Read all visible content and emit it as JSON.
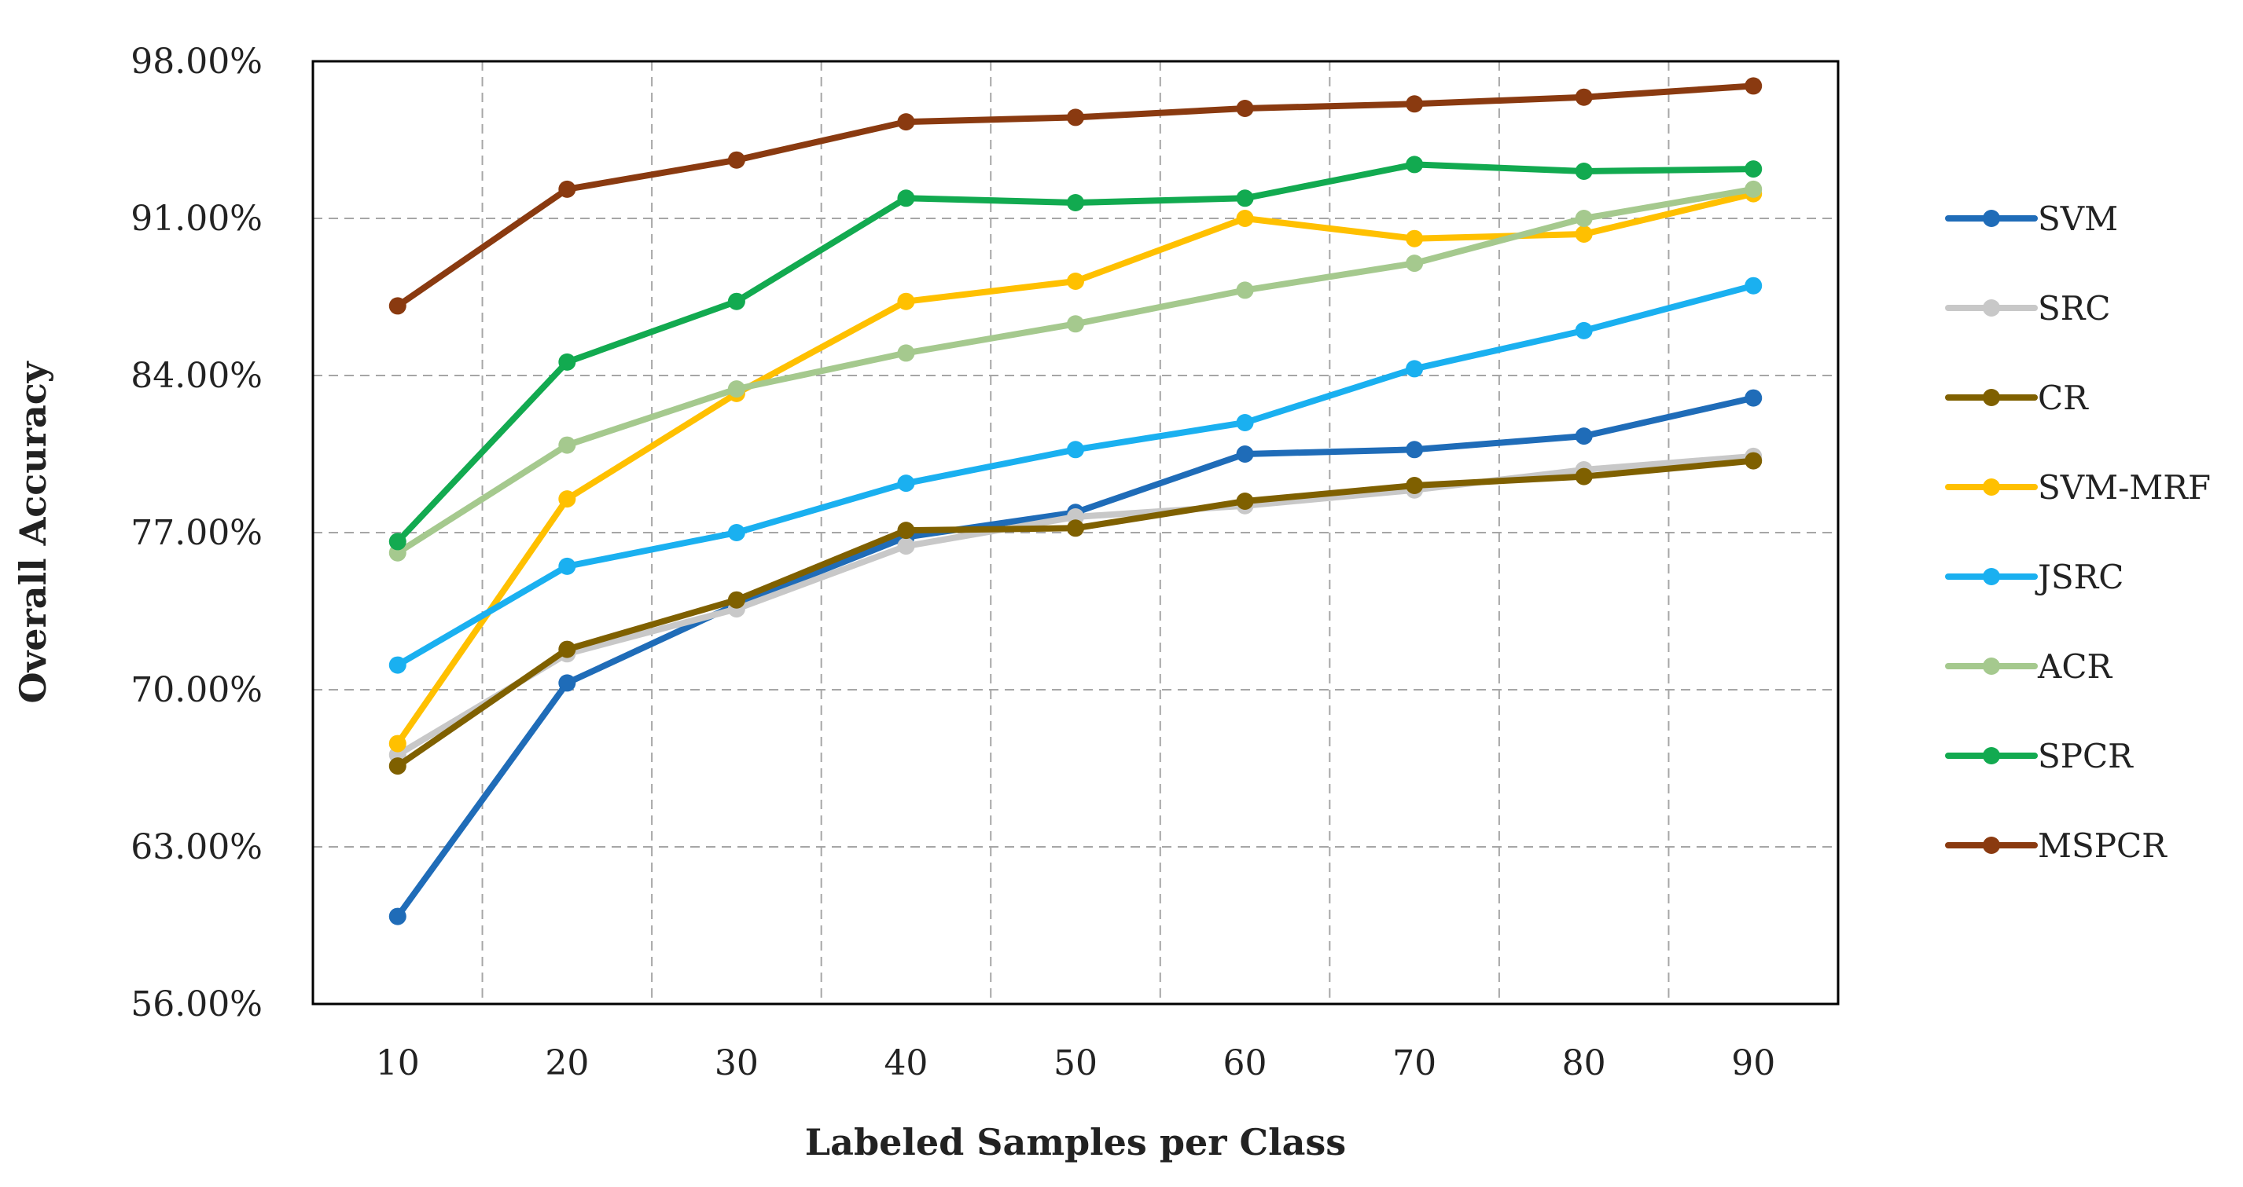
{
  "chart_data": {
    "type": "line",
    "title": "",
    "xlabel": "Labeled Samples per Class",
    "ylabel": "Overall Accuracy",
    "x": [
      10,
      20,
      30,
      40,
      50,
      60,
      70,
      80,
      90
    ],
    "x_tick_labels": [
      "10",
      "20",
      "30",
      "40",
      "50",
      "60",
      "70",
      "80",
      "90"
    ],
    "xlim": [
      5,
      95
    ],
    "ylim": [
      56,
      98
    ],
    "y_ticks": [
      56,
      63,
      70,
      77,
      84,
      91,
      98
    ],
    "y_tick_labels": [
      "56.00%",
      "63.00%",
      "70.00%",
      "77.00%",
      "84.00%",
      "91.00%",
      "98.00%"
    ],
    "grid": true,
    "legend_position": "right",
    "series": [
      {
        "name": "SVM",
        "color": "#1f6cb8",
        "values": [
          59.9,
          70.3,
          73.8,
          76.8,
          77.9,
          80.5,
          80.7,
          81.3,
          83.0
        ]
      },
      {
        "name": "SRC",
        "color": "#c8c8c8",
        "values": [
          67.1,
          71.6,
          73.6,
          76.4,
          77.7,
          78.2,
          78.9,
          79.8,
          80.4
        ]
      },
      {
        "name": "CR",
        "color": "#7f6000",
        "values": [
          66.6,
          71.8,
          74.0,
          77.1,
          77.2,
          78.4,
          79.1,
          79.5,
          80.2
        ]
      },
      {
        "name": "SVM-MRF",
        "color": "#ffc000",
        "values": [
          67.6,
          78.5,
          83.2,
          87.3,
          88.2,
          91.0,
          90.1,
          90.3,
          92.1
        ]
      },
      {
        "name": "JSRC",
        "color": "#1ab0f0",
        "values": [
          71.1,
          75.5,
          77.0,
          79.2,
          80.7,
          81.9,
          84.3,
          86.0,
          88.0
        ]
      },
      {
        "name": "ACR",
        "color": "#a5c98e",
        "values": [
          76.1,
          80.9,
          83.4,
          85.0,
          86.3,
          87.8,
          89.0,
          91.0,
          92.3
        ]
      },
      {
        "name": "SPCR",
        "color": "#12aa50",
        "values": [
          76.6,
          84.6,
          87.3,
          91.9,
          91.7,
          91.9,
          93.4,
          93.1,
          93.2
        ]
      },
      {
        "name": "MSPCR",
        "color": "#8a3a10",
        "values": [
          87.1,
          92.3,
          93.6,
          95.3,
          95.5,
          95.9,
          96.1,
          96.4,
          96.9
        ]
      }
    ]
  }
}
